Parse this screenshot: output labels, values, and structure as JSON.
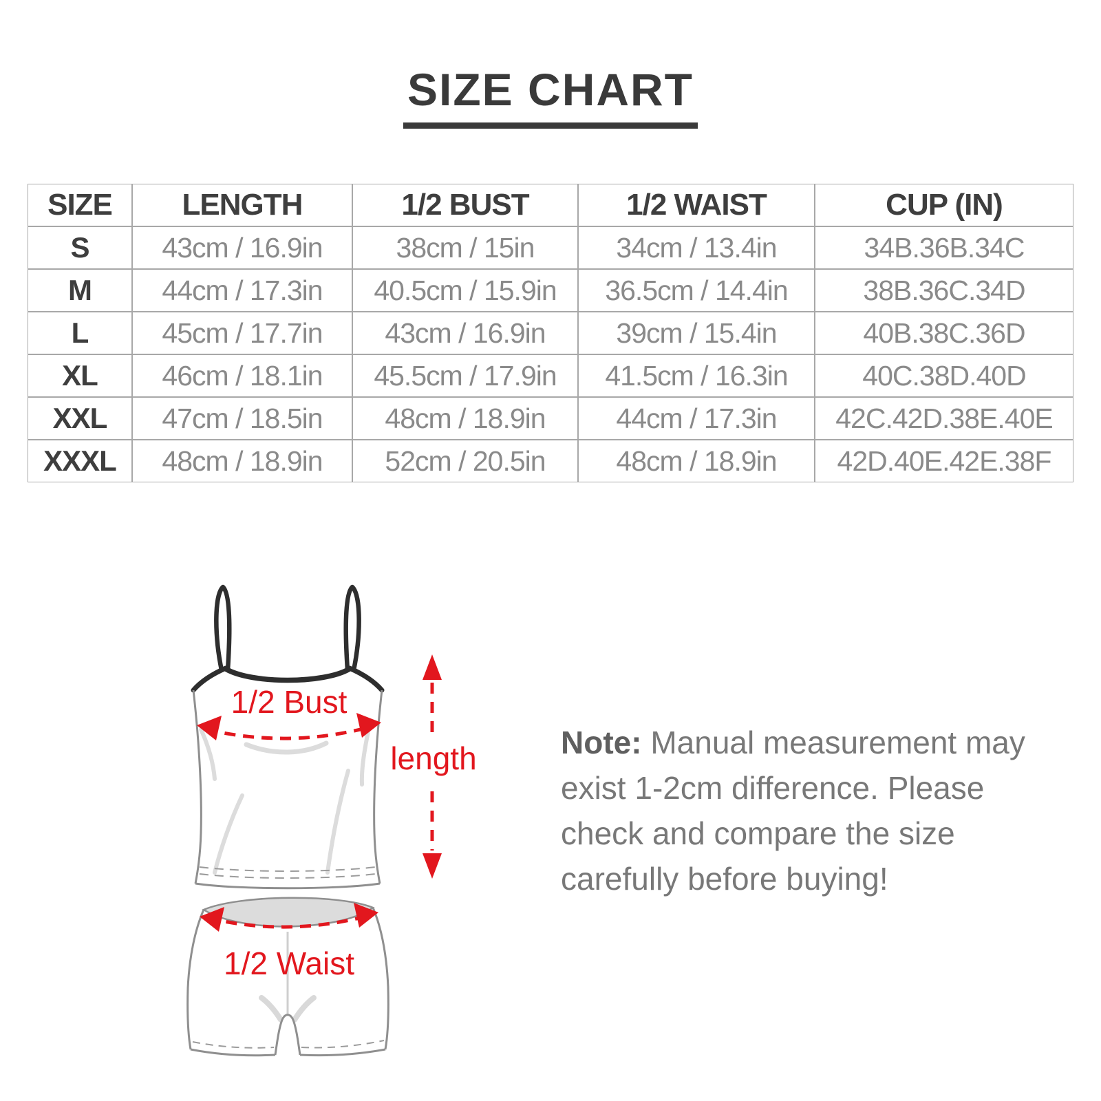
{
  "title": "SIZE CHART",
  "table": {
    "headers": [
      "SIZE",
      "LENGTH",
      "1/2 BUST",
      "1/2 WAIST",
      "CUP (IN)"
    ],
    "rows": [
      {
        "size": "S",
        "length": "43cm / 16.9in",
        "bust": "38cm / 15in",
        "waist": "34cm / 13.4in",
        "cup": "34B.36B.34C"
      },
      {
        "size": "M",
        "length": "44cm / 17.3in",
        "bust": "40.5cm / 15.9in",
        "waist": "36.5cm / 14.4in",
        "cup": "38B.36C.34D"
      },
      {
        "size": "L",
        "length": "45cm / 17.7in",
        "bust": "43cm / 16.9in",
        "waist": "39cm / 15.4in",
        "cup": "40B.38C.36D"
      },
      {
        "size": "XL",
        "length": "46cm / 18.1in",
        "bust": "45.5cm / 17.9in",
        "waist": "41.5cm / 16.3in",
        "cup": "40C.38D.40D"
      },
      {
        "size": "XXL",
        "length": "47cm / 18.5in",
        "bust": "48cm / 18.9in",
        "waist": "44cm / 17.3in",
        "cup": "42C.42D.38E.40E"
      },
      {
        "size": "XXXL",
        "length": "48cm / 18.9in",
        "bust": "52cm / 20.5in",
        "waist": "48cm / 18.9in",
        "cup": "42D.40E.42E.38F"
      }
    ]
  },
  "diagram": {
    "bust_label": "1/2 Bust",
    "length_label": "length",
    "waist_label": "1/2 Waist"
  },
  "note": {
    "label": "Note:",
    "lines": [
      "Manual measurement may",
      "exist 1-2cm difference. Please",
      "check and compare the size",
      "carefully before buying!"
    ]
  },
  "colors": {
    "heading_text": "#3a3a3a",
    "data_text": "#8a8a8a",
    "table_border": "#a8a8a8",
    "note_text": "#787878",
    "accent_red": "#e2171e",
    "garment_outline": "#8f8f8f",
    "strap_black": "#2e2e2e",
    "waistband_fill": "#dcdcdc"
  }
}
